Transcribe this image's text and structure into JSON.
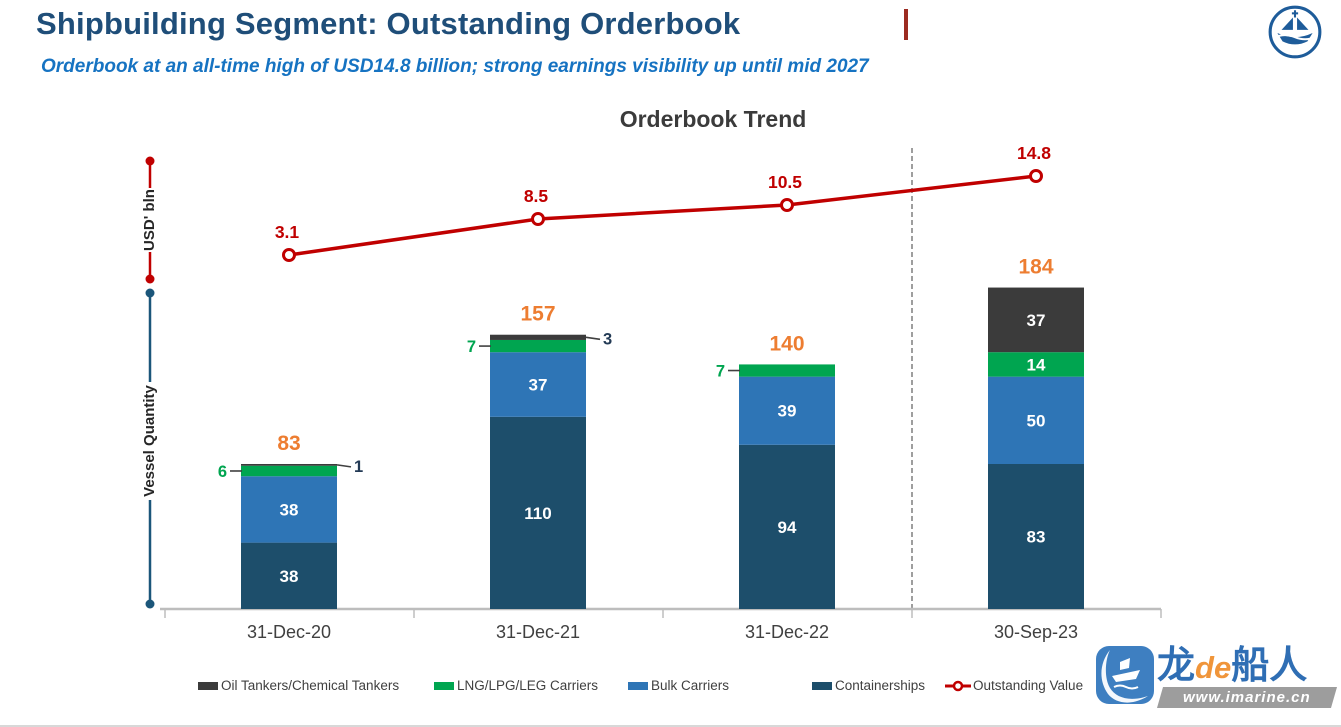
{
  "header": {
    "title": "Shipbuilding Segment: Outstanding Orderbook",
    "subtitle": "Orderbook at an all-time high of USD14.8 billion; strong earnings visibility up until mid 2027"
  },
  "chart_data": {
    "type": "bar",
    "subtype": "stacked-columns-with-line-overlay",
    "title": "Orderbook Trend",
    "categories": [
      "31-Dec-20",
      "31-Dec-21",
      "31-Dec-22",
      "30-Sep-23"
    ],
    "stacked": true,
    "series": [
      {
        "name": "Containerships",
        "color": "#1D4E6B",
        "values": [
          38,
          110,
          94,
          83
        ],
        "label_placement": [
          "inside",
          "inside",
          "inside",
          "inside"
        ]
      },
      {
        "name": "Bulk Carriers",
        "color": "#2E75B6",
        "values": [
          38,
          37,
          39,
          50
        ],
        "label_placement": [
          "inside",
          "inside",
          "inside",
          "inside"
        ]
      },
      {
        "name": "LNG/LPG/LEG Carriers",
        "color": "#00A550",
        "values": [
          6,
          7,
          7,
          14
        ],
        "label_placement": [
          "left",
          "left",
          "left",
          "inside"
        ],
        "outside_label_color": "#00A550"
      },
      {
        "name": "Oil Tankers/Chemical Tankers",
        "color": "#3B3B3B",
        "values": [
          1,
          3,
          0,
          37
        ],
        "label_placement": [
          "right",
          "right",
          "none",
          "inside"
        ],
        "outside_label_color": "#233A55"
      }
    ],
    "totals": {
      "values": [
        83,
        157,
        140,
        184
      ],
      "color": "#ED7D31"
    },
    "line_series": {
      "name": "Outstanding Value",
      "color": "#C00000",
      "values": [
        3.1,
        8.5,
        10.5,
        14.8
      ],
      "axis_label": "USD' bln"
    },
    "quantity_axis_label": "Vessel Quantity",
    "value_axis_color": "#C00000",
    "quantity_axis_color": "#1B567A",
    "separator_before_category": "30-Sep-23",
    "legend_position": "bottom",
    "grid": false
  },
  "legend": {
    "items": [
      {
        "label": "Oil Tankers/Chemical Tankers",
        "swatch": "rect",
        "color": "#3B3B3B"
      },
      {
        "label": "LNG/LPG/LEG Carriers",
        "swatch": "rect",
        "color": "#00A550"
      },
      {
        "label": "Bulk Carriers",
        "swatch": "rect",
        "color": "#2E75B6"
      },
      {
        "label": "Containerships",
        "swatch": "rect",
        "color": "#1D4E6B"
      },
      {
        "label": "Outstanding Value",
        "swatch": "line-marker",
        "color": "#C00000"
      }
    ]
  },
  "logo": {
    "name": "ship-emblem",
    "color": "#1E5C9A"
  },
  "watermark": {
    "brand_part1": "龙",
    "brand_part2": "de",
    "brand_part3": "船人",
    "url": "www.imarine.cn",
    "blue": "#2F6EB4",
    "orange": "#F0953A"
  }
}
